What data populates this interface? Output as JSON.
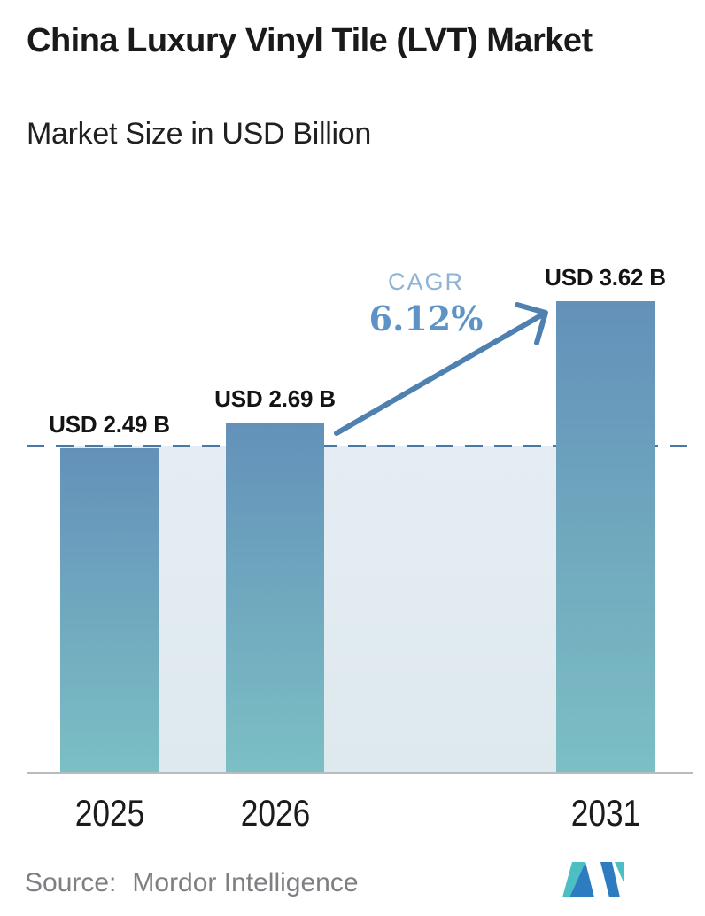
{
  "header": {
    "title": "China Luxury Vinyl Tile (LVT) Market",
    "subtitle": "Market Size in USD Billion"
  },
  "chart_data": {
    "type": "bar",
    "categories": [
      "2025",
      "2026",
      "2031"
    ],
    "values": [
      2.49,
      2.69,
      3.62
    ],
    "value_labels": [
      "USD 2.49 B",
      "USD 2.69 B",
      "USD 3.62 B"
    ],
    "title": "China Luxury Vinyl Tile (LVT) Market",
    "subtitle": "Market Size in USD Billion",
    "xlabel": "",
    "ylabel": "Market Size in USD Billion",
    "ylim": [
      0,
      3.62
    ],
    "grid": false,
    "legend": "none",
    "reference_line_value": 2.49,
    "annotation": {
      "label": "CAGR",
      "value": "6.12%"
    }
  },
  "cagr": {
    "label": "CAGR",
    "value": "6.12%"
  },
  "footer": {
    "source_label": "Source:",
    "source_value": "Mordor Intelligence"
  },
  "colors": {
    "bar_gradient_top": "#6391b9",
    "bar_gradient_bottom": "#7cbfc4",
    "band_gradient_top": "#e5edf3",
    "band_gradient_bottom": "#dde9ee",
    "dashed_line": "#4679a8",
    "arrow": "#4e81af",
    "cagr_label": "#8db3d6",
    "cagr_value": "#5e93c6",
    "baseline": "#b9bcbe",
    "title_text": "#1a1a1a",
    "source_text": "#7d7f82",
    "logo_teal": "#4bbfc4",
    "logo_blue": "#2d7cc0"
  }
}
